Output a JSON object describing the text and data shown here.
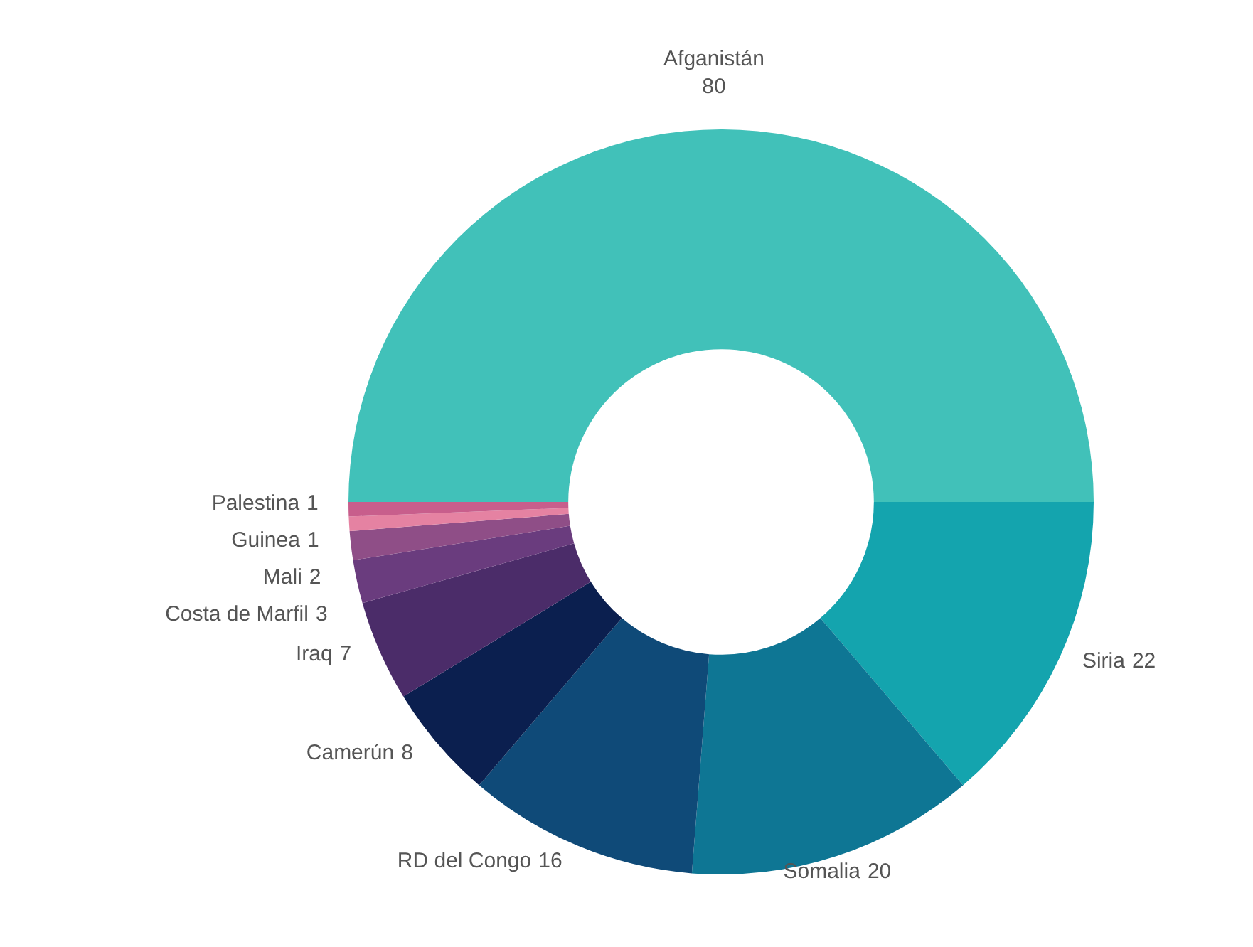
{
  "chart_data": {
    "type": "donut",
    "categories": [
      "Afganistán",
      "Siria",
      "Somalia",
      "RD del Congo",
      "Camerún",
      "Iraq",
      "Costa de Marfil",
      "Mali",
      "Guinea",
      "Palestina"
    ],
    "values": [
      80,
      22,
      20,
      16,
      8,
      7,
      3,
      2,
      1,
      1
    ],
    "colors": [
      "#41c1b9",
      "#14a4ae",
      "#0e7694",
      "#0f4a78",
      "#0b1f4f",
      "#4b2c69",
      "#6a3c7e",
      "#8f4e87",
      "#e582a2",
      "#c85e8c"
    ],
    "data_labels": true
  }
}
